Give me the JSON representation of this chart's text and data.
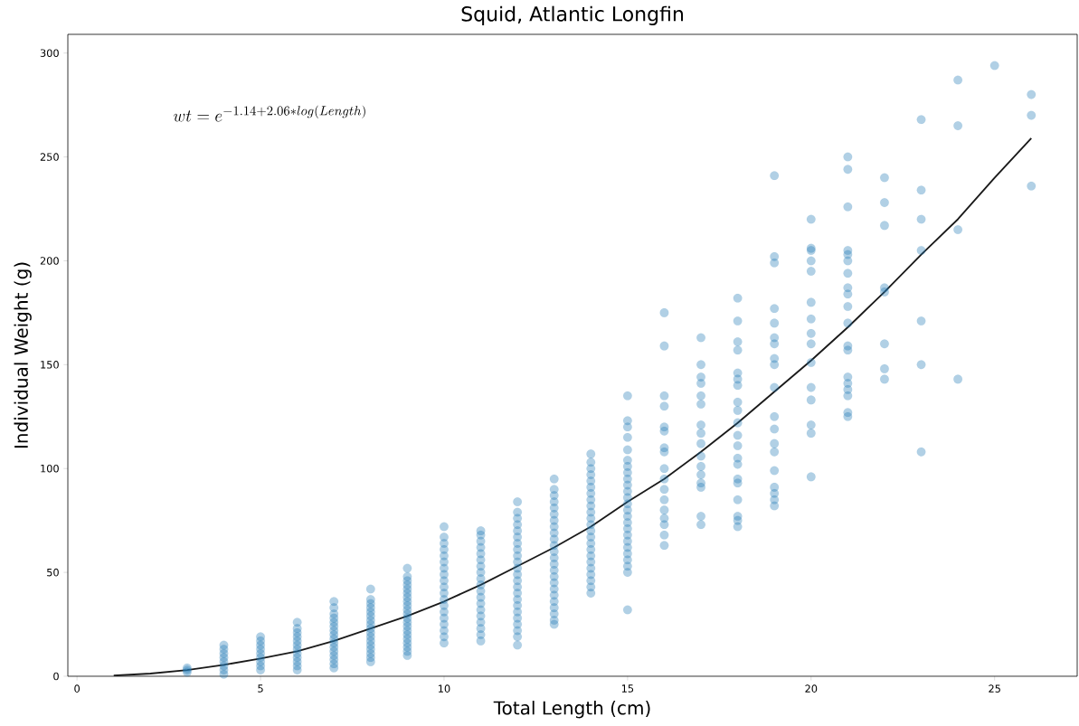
{
  "chart_data": {
    "type": "scatter",
    "title": "Squid, Atlantic Longfin",
    "xlabel": "Total Length (cm)",
    "ylabel": "Individual Weight (g)",
    "annotations": [
      "wt = e^{-1.14 + 2.06 * log(Length)}"
    ],
    "xlim": [
      -0.25,
      27.25
    ],
    "ylim": [
      0,
      309
    ],
    "xticks": [
      0,
      5,
      10,
      15,
      20,
      25
    ],
    "yticks": [
      0,
      50,
      100,
      150,
      200,
      250,
      300
    ],
    "series": [
      {
        "color": "#1f77b4",
        "marker": "circle",
        "x": [
          3,
          3,
          3,
          4,
          4,
          4,
          4,
          4,
          4,
          4,
          4,
          5,
          5,
          5,
          5,
          5,
          5,
          5,
          5,
          5,
          6,
          6,
          6,
          6,
          6,
          6,
          6,
          6,
          6,
          6,
          6,
          6,
          7,
          7,
          7,
          7,
          7,
          7,
          7,
          7,
          7,
          7,
          7,
          7,
          7,
          7,
          7,
          7,
          8,
          8,
          8,
          8,
          8,
          8,
          8,
          8,
          8,
          8,
          8,
          8,
          8,
          8,
          8,
          8,
          8,
          9,
          9,
          9,
          9,
          9,
          9,
          9,
          9,
          9,
          9,
          9,
          9,
          9,
          9,
          9,
          9,
          9,
          9,
          9,
          9,
          9,
          10,
          10,
          10,
          10,
          10,
          10,
          10,
          10,
          10,
          10,
          10,
          10,
          10,
          10,
          10,
          10,
          10,
          10,
          10,
          11,
          11,
          11,
          11,
          11,
          11,
          11,
          11,
          11,
          11,
          11,
          11,
          11,
          11,
          11,
          11,
          11,
          11,
          11,
          12,
          12,
          12,
          12,
          12,
          12,
          12,
          12,
          12,
          12,
          12,
          12,
          12,
          12,
          12,
          12,
          12,
          12,
          12,
          12,
          12,
          12,
          12,
          13,
          13,
          13,
          13,
          13,
          13,
          13,
          13,
          13,
          13,
          13,
          13,
          13,
          13,
          13,
          13,
          13,
          13,
          13,
          13,
          13,
          13,
          13,
          13,
          14,
          14,
          14,
          14,
          14,
          14,
          14,
          14,
          14,
          14,
          14,
          14,
          14,
          14,
          14,
          14,
          14,
          14,
          14,
          14,
          14,
          14,
          14,
          15,
          15,
          15,
          15,
          15,
          15,
          15,
          15,
          15,
          15,
          15,
          15,
          15,
          15,
          15,
          15,
          15,
          15,
          15,
          15,
          15,
          15,
          15,
          15,
          15,
          16,
          16,
          16,
          16,
          16,
          16,
          16,
          16,
          16,
          16,
          16,
          16,
          16,
          16,
          16,
          16,
          16,
          17,
          17,
          17,
          17,
          17,
          17,
          17,
          17,
          17,
          17,
          17,
          17,
          17,
          17,
          17,
          17,
          18,
          18,
          18,
          18,
          18,
          18,
          18,
          18,
          18,
          18,
          18,
          18,
          18,
          18,
          18,
          18,
          18,
          18,
          18,
          18,
          19,
          19,
          19,
          19,
          19,
          19,
          19,
          19,
          19,
          19,
          19,
          19,
          19,
          19,
          19,
          19,
          19,
          19,
          19,
          20,
          20,
          20,
          20,
          20,
          20,
          20,
          20,
          20,
          20,
          20,
          20,
          20,
          20,
          20,
          21,
          21,
          21,
          21,
          21,
          21,
          21,
          21,
          21,
          21,
          21,
          21,
          21,
          21,
          21,
          21,
          21,
          21,
          21,
          22,
          22,
          22,
          22,
          22,
          22,
          22,
          22,
          23,
          23,
          23,
          23,
          23,
          23,
          23,
          24,
          24,
          24,
          24,
          25,
          26,
          26,
          26
        ],
        "values": [
          2,
          3,
          4,
          1,
          3,
          5,
          7,
          9,
          11,
          13,
          15,
          3,
          5,
          7,
          9,
          11,
          13,
          15,
          17,
          19,
          3,
          5,
          7,
          9,
          11,
          13,
          15,
          17,
          19,
          21,
          23,
          26,
          4,
          6,
          8,
          10,
          12,
          14,
          16,
          18,
          20,
          22,
          24,
          26,
          28,
          30,
          33,
          36,
          7,
          9,
          11,
          13,
          15,
          17,
          19,
          21,
          23,
          25,
          27,
          29,
          31,
          33,
          35,
          37,
          42,
          10,
          12,
          14,
          16,
          18,
          20,
          22,
          24,
          26,
          28,
          30,
          32,
          34,
          36,
          38,
          40,
          42,
          44,
          46,
          48,
          52,
          16,
          19,
          22,
          25,
          28,
          31,
          34,
          37,
          40,
          43,
          46,
          49,
          52,
          55,
          58,
          61,
          64,
          67,
          72,
          17,
          20,
          23,
          26,
          29,
          32,
          35,
          38,
          41,
          44,
          47,
          50,
          53,
          56,
          59,
          62,
          65,
          68,
          70,
          15,
          19,
          22,
          25,
          28,
          31,
          34,
          37,
          40,
          43,
          46,
          49,
          52,
          55,
          58,
          61,
          64,
          67,
          70,
          73,
          76,
          79,
          84,
          25,
          27,
          30,
          33,
          36,
          39,
          42,
          45,
          48,
          51,
          54,
          57,
          60,
          63,
          66,
          69,
          72,
          75,
          78,
          81,
          84,
          87,
          90,
          95,
          40,
          43,
          46,
          49,
          52,
          55,
          58,
          61,
          64,
          67,
          70,
          73,
          76,
          79,
          82,
          85,
          88,
          91,
          94,
          97,
          100,
          103,
          107,
          32,
          50,
          53,
          56,
          59,
          62,
          65,
          68,
          71,
          74,
          77,
          80,
          83,
          86,
          89,
          92,
          95,
          98,
          101,
          104,
          109,
          115,
          120,
          123,
          135,
          175,
          159,
          135,
          130,
          120,
          118,
          110,
          108,
          100,
          95,
          90,
          85,
          80,
          76,
          73,
          68,
          63,
          163,
          150,
          144,
          141,
          135,
          131,
          121,
          117,
          112,
          106,
          101,
          97,
          93,
          91,
          77,
          73,
          182,
          171,
          161,
          157,
          146,
          143,
          140,
          132,
          128,
          122,
          116,
          111,
          105,
          102,
          95,
          93,
          85,
          77,
          75,
          72,
          241,
          202,
          199,
          177,
          170,
          163,
          160,
          153,
          150,
          139,
          125,
          119,
          112,
          108,
          99,
          91,
          88,
          85,
          82,
          220,
          206,
          205,
          200,
          195,
          180,
          172,
          165,
          160,
          151,
          139,
          133,
          121,
          117,
          96,
          250,
          244,
          226,
          205,
          203,
          200,
          194,
          187,
          184,
          178,
          170,
          159,
          157,
          144,
          141,
          138,
          135,
          127,
          125,
          240,
          228,
          217,
          187,
          185,
          160,
          148,
          143,
          268,
          234,
          220,
          205,
          171,
          150,
          108,
          287,
          265,
          215,
          143,
          294,
          280,
          270,
          236
        ]
      },
      {
        "type": "line",
        "color": "#1a1a1a",
        "x": [
          1,
          2,
          3,
          4,
          5,
          6,
          7,
          8,
          9,
          10,
          11,
          12,
          13,
          14,
          15,
          16,
          17,
          18,
          19,
          20,
          21,
          22,
          23,
          24,
          25,
          26
        ],
        "values": [
          0.3,
          1.3,
          3,
          5.5,
          8.5,
          12,
          17,
          23,
          29,
          36,
          44,
          53,
          62,
          72,
          84,
          95,
          108,
          122,
          137,
          152,
          168,
          185,
          203,
          220,
          240,
          259
        ]
      }
    ]
  }
}
